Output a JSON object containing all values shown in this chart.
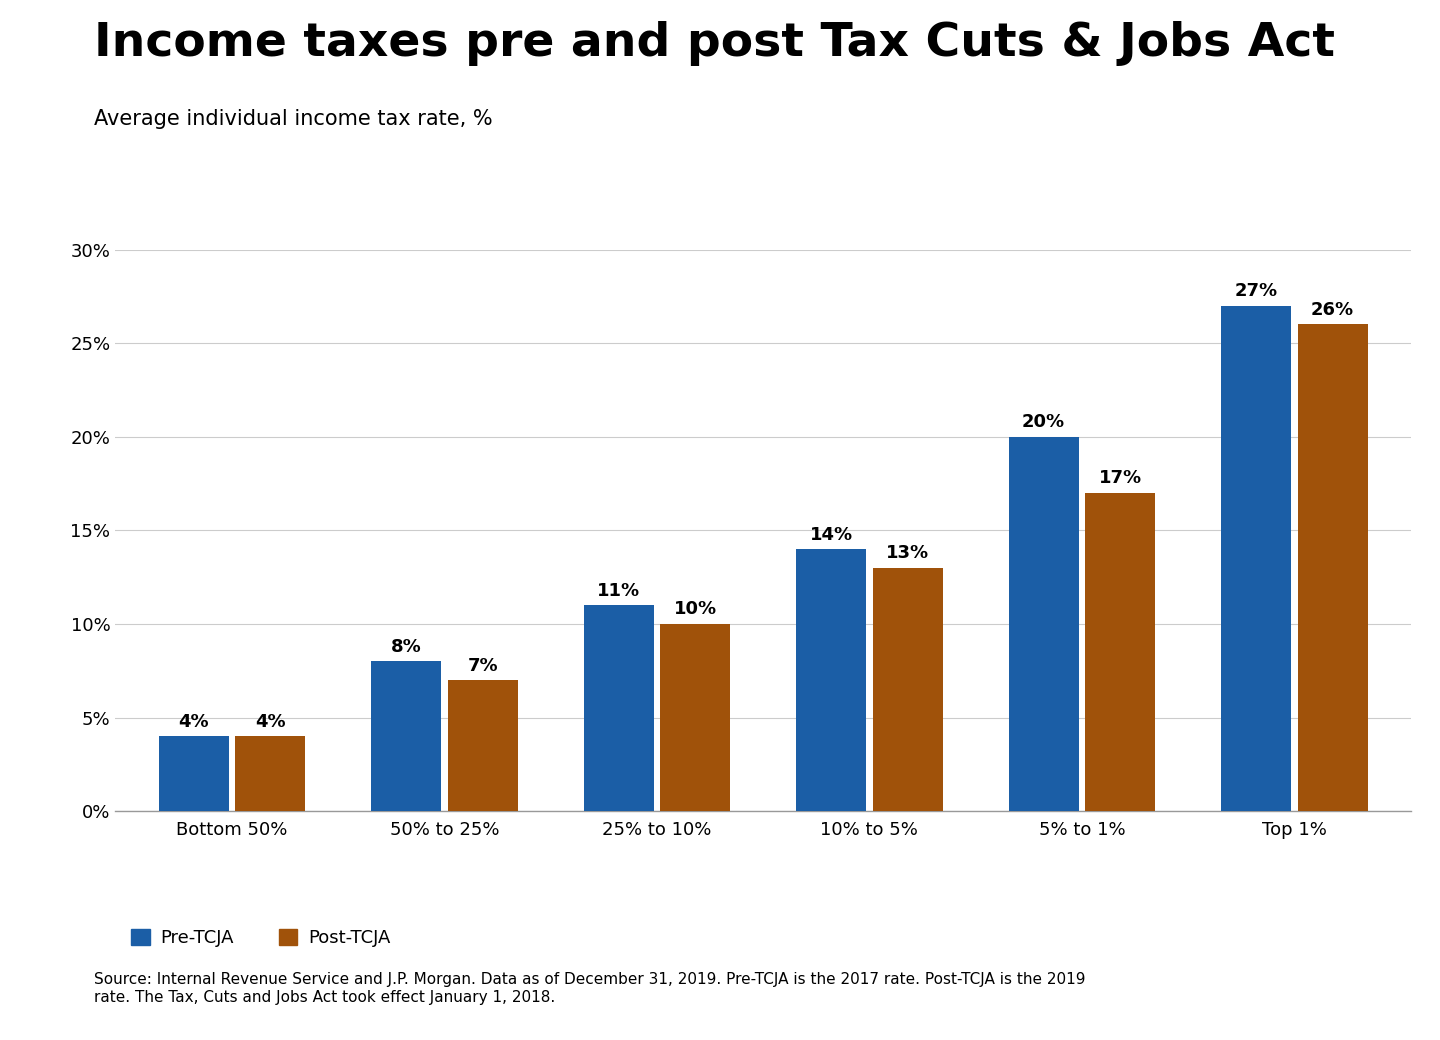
{
  "title": "Income taxes pre and post Tax Cuts & Jobs Act",
  "subtitle": "Average individual income tax rate, %",
  "categories": [
    "Bottom 50%",
    "50% to 25%",
    "25% to 10%",
    "10% to 5%",
    "5% to 1%",
    "Top 1%"
  ],
  "pre_tcja": [
    4,
    8,
    11,
    14,
    20,
    27
  ],
  "post_tcja": [
    4,
    7,
    10,
    13,
    17,
    26
  ],
  "pre_color": "#1B5EA6",
  "post_color": "#A0520A",
  "ylim": [
    0,
    30
  ],
  "yticks": [
    0,
    5,
    10,
    15,
    20,
    25,
    30
  ],
  "legend_pre": "Pre-TCJA",
  "legend_post": "Post-TCJA",
  "footnote": "Source: Internal Revenue Service and J.P. Morgan. Data as of December 31, 2019. Pre-TCJA is the 2017 rate. Post-TCJA is the 2019\nrate. The Tax, Cuts and Jobs Act took effect January 1, 2018.",
  "title_fontsize": 34,
  "subtitle_fontsize": 15,
  "bar_label_fontsize": 13,
  "axis_fontsize": 13,
  "legend_fontsize": 13,
  "footnote_fontsize": 11,
  "background_color": "#FFFFFF"
}
